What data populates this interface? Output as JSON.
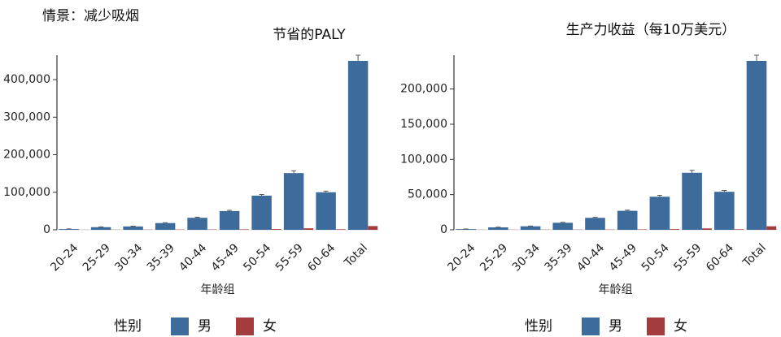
{
  "scenario": "情景：减少吸烟",
  "chart_data": [
    {
      "type": "bar",
      "title": "节省的PALY",
      "xlabel": "年龄组",
      "legend_title": "性别",
      "categories": [
        "20-24",
        "25-29",
        "30-34",
        "35-39",
        "40-44",
        "45-49",
        "50-54",
        "55-59",
        "60-64",
        "Total"
      ],
      "series": [
        {
          "name": "男",
          "color": "#3d6b9c",
          "values": [
            2000,
            7000,
            9000,
            18000,
            32000,
            50000,
            91000,
            151000,
            100000,
            450000
          ],
          "errors": [
            300,
            500,
            600,
            800,
            1500,
            2000,
            3000,
            6000,
            3000,
            15000
          ]
        },
        {
          "name": "女",
          "color": "#a33c3c",
          "values": [
            300,
            400,
            500,
            700,
            900,
            1200,
            2000,
            4000,
            1500,
            10000
          ]
        }
      ],
      "ylim": [
        0,
        465000
      ],
      "yticks": [
        0,
        {
          "value": 100000,
          "label": "100,000"
        },
        {
          "value": 200000,
          "label": "200,000"
        },
        {
          "value": 300000,
          "label": "300,000"
        },
        {
          "value": 400000,
          "label": "400,000"
        }
      ]
    },
    {
      "type": "bar",
      "title": "生产力收益（每10万美元）",
      "xlabel": "年龄组",
      "legend_title": "性别",
      "categories": [
        "20-24",
        "25-29",
        "30-34",
        "35-39",
        "40-44",
        "45-49",
        "50-54",
        "55-59",
        "60-64",
        "Total"
      ],
      "series": [
        {
          "name": "男",
          "color": "#3d6b9c",
          "values": [
            1000,
            3500,
            5000,
            10000,
            17000,
            27000,
            47000,
            81000,
            54000,
            240000
          ],
          "errors": [
            200,
            300,
            400,
            500,
            800,
            1000,
            2000,
            3500,
            2000,
            8000
          ]
        },
        {
          "name": "女",
          "color": "#a33c3c",
          "values": [
            200,
            200,
            300,
            300,
            400,
            600,
            1000,
            2000,
            800,
            5000
          ]
        }
      ],
      "ylim": [
        0,
        248000
      ],
      "yticks": [
        0,
        {
          "value": 50000,
          "label": "50,000"
        },
        {
          "value": 100000,
          "label": "100,000"
        },
        {
          "value": 150000,
          "label": "150,000"
        },
        {
          "value": 200000,
          "label": "200,000"
        }
      ]
    }
  ]
}
